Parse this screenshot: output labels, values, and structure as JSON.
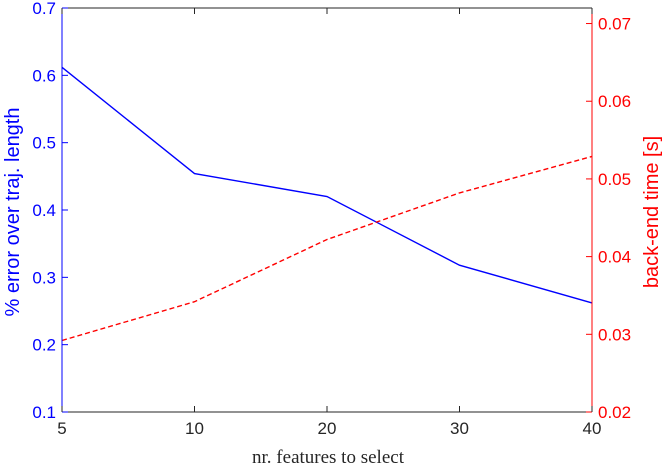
{
  "chart_data": {
    "type": "line",
    "title": "",
    "xlabel": "nr. features to select",
    "x_categories": [
      "5",
      "10",
      "20",
      "30",
      "40"
    ],
    "grid": false,
    "y_left": {
      "label": "% error over traj. length",
      "color": "#0000ff",
      "range": [
        0.1,
        0.7
      ],
      "ticks": [
        "0.1",
        "0.2",
        "0.3",
        "0.4",
        "0.5",
        "0.6",
        "0.7"
      ],
      "tick_values": [
        0.1,
        0.2,
        0.3,
        0.4,
        0.5,
        0.6,
        0.7
      ]
    },
    "y_right": {
      "label": "back-end time [s]",
      "color": "#ff0000",
      "range": [
        0.02,
        0.072
      ],
      "ticks": [
        "0.02",
        "0.03",
        "0.04",
        "0.05",
        "0.06",
        "0.07"
      ],
      "tick_values": [
        0.02,
        0.03,
        0.04,
        0.05,
        0.06,
        0.07
      ]
    },
    "series": [
      {
        "axis": "left",
        "color": "#0000ff",
        "style": "solid",
        "values": [
          0.612,
          0.454,
          0.42,
          0.318,
          0.262
        ]
      },
      {
        "axis": "right",
        "color": "#ff0000",
        "style": "dashed",
        "values": [
          0.0292,
          0.0342,
          0.0422,
          0.0482,
          0.0529
        ]
      }
    ]
  }
}
